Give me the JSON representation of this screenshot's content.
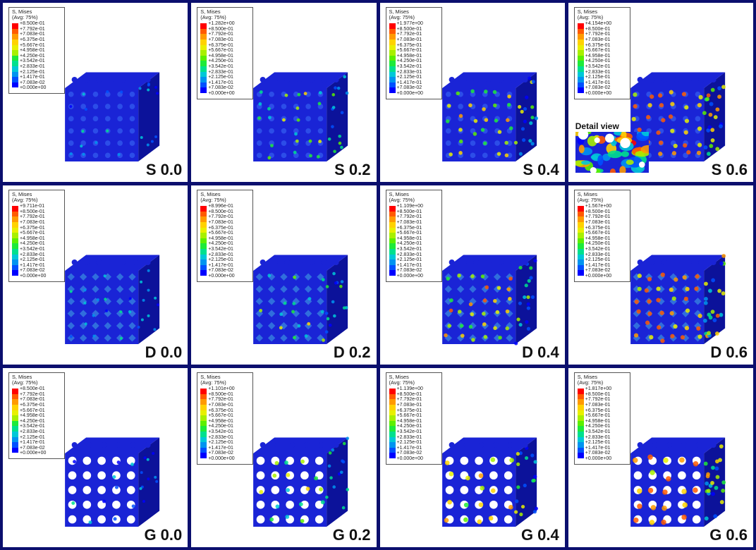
{
  "legend_header": [
    "S, Mises",
    "(Avg: 75%)"
  ],
  "colors": {
    "frame": "#0b0f6e",
    "cube_base": "#1a24d6",
    "cube_dark": "#0c129a",
    "colormap": [
      "#ff0000",
      "#ff5a00",
      "#ff9a00",
      "#ffd200",
      "#e8f000",
      "#a8f000",
      "#5cef00",
      "#1eea3a",
      "#00e08e",
      "#00c8d8",
      "#0094f0",
      "#0050ff",
      "#0000ff"
    ]
  },
  "panels": [
    {
      "label": "S 0.0",
      "topology": "S",
      "load": 0.0,
      "legend": [
        "+8.500e-01",
        "+7.792e-01",
        "+7.083e-01",
        "+6.375e-01",
        "+5.667e-01",
        "+4.958e-01",
        "+4.250e-01",
        "+3.542e-01",
        "+2.833e-01",
        "+2.125e-01",
        "+1.417e-01",
        "+7.083e-02",
        "+0.000e+00"
      ]
    },
    {
      "label": "S 0.2",
      "topology": "S",
      "load": 0.2,
      "legend": [
        "+1.282e+00",
        "+8.500e-01",
        "+7.792e-01",
        "+7.083e-01",
        "+6.375e-01",
        "+5.667e-01",
        "+4.958e-01",
        "+4.250e-01",
        "+3.542e-01",
        "+2.833e-01",
        "+2.125e-01",
        "+1.417e-01",
        "+7.083e-02",
        "+0.000e+00"
      ]
    },
    {
      "label": "S 0.4",
      "topology": "S",
      "load": 0.4,
      "legend": [
        "+1.977e+00",
        "+8.500e-01",
        "+7.792e-01",
        "+7.083e-01",
        "+6.375e-01",
        "+5.667e-01",
        "+4.958e-01",
        "+4.250e-01",
        "+3.542e-01",
        "+2.833e-01",
        "+2.125e-01",
        "+1.417e-01",
        "+7.083e-02",
        "+0.000e+00"
      ]
    },
    {
      "label": "S 0.6",
      "topology": "S",
      "load": 0.6,
      "detail_title": "Detail view",
      "legend": [
        "+4.154e+00",
        "+8.500e-01",
        "+7.792e-01",
        "+7.083e-01",
        "+6.375e-01",
        "+5.667e-01",
        "+4.958e-01",
        "+4.250e-01",
        "+3.542e-01",
        "+2.833e-01",
        "+2.125e-01",
        "+1.417e-01",
        "+7.083e-02",
        "+0.000e+00"
      ]
    },
    {
      "label": "D 0.0",
      "topology": "D",
      "load": 0.0,
      "legend": [
        "+9.711e-01",
        "+8.500e-01",
        "+7.792e-01",
        "+7.083e-01",
        "+6.375e-01",
        "+5.667e-01",
        "+4.958e-01",
        "+4.250e-01",
        "+3.542e-01",
        "+2.833e-01",
        "+2.125e-01",
        "+1.417e-01",
        "+7.083e-02",
        "+0.000e+00"
      ]
    },
    {
      "label": "D 0.2",
      "topology": "D",
      "load": 0.2,
      "legend": [
        "+8.996e-01",
        "+8.500e-01",
        "+7.792e-01",
        "+7.083e-01",
        "+6.375e-01",
        "+5.667e-01",
        "+4.958e-01",
        "+4.250e-01",
        "+3.542e-01",
        "+2.833e-01",
        "+2.125e-01",
        "+1.417e-01",
        "+7.083e-02",
        "+0.000e+00"
      ]
    },
    {
      "label": "D 0.4",
      "topology": "D",
      "load": 0.4,
      "legend": [
        "+1.109e+00",
        "+8.500e-01",
        "+7.792e-01",
        "+7.083e-01",
        "+6.375e-01",
        "+5.667e-01",
        "+4.958e-01",
        "+4.250e-01",
        "+3.542e-01",
        "+2.833e-01",
        "+2.125e-01",
        "+1.417e-01",
        "+7.083e-02",
        "+0.000e+00"
      ]
    },
    {
      "label": "D 0.6",
      "topology": "D",
      "load": 0.6,
      "legend": [
        "+1.567e+00",
        "+8.500e-01",
        "+7.792e-01",
        "+7.083e-01",
        "+6.375e-01",
        "+5.667e-01",
        "+4.958e-01",
        "+4.250e-01",
        "+3.542e-01",
        "+2.833e-01",
        "+2.125e-01",
        "+1.417e-01",
        "+7.083e-02",
        "+0.000e+00"
      ]
    },
    {
      "label": "G 0.0",
      "topology": "G",
      "load": 0.0,
      "legend": [
        "+8.500e-01",
        "+7.792e-01",
        "+7.083e-01",
        "+6.375e-01",
        "+5.667e-01",
        "+4.958e-01",
        "+4.250e-01",
        "+3.542e-01",
        "+2.833e-01",
        "+2.125e-01",
        "+1.417e-01",
        "+7.083e-02",
        "+0.000e+00"
      ]
    },
    {
      "label": "G 0.2",
      "topology": "G",
      "load": 0.2,
      "legend": [
        "+1.101e+00",
        "+8.500e-01",
        "+7.792e-01",
        "+7.083e-01",
        "+6.375e-01",
        "+5.667e-01",
        "+4.958e-01",
        "+4.250e-01",
        "+3.542e-01",
        "+2.833e-01",
        "+2.125e-01",
        "+1.417e-01",
        "+7.083e-02",
        "+0.000e+00"
      ]
    },
    {
      "label": "G 0.4",
      "topology": "G",
      "load": 0.4,
      "legend": [
        "+1.139e+00",
        "+8.500e-01",
        "+7.792e-01",
        "+7.083e-01",
        "+6.375e-01",
        "+5.667e-01",
        "+4.958e-01",
        "+4.250e-01",
        "+3.542e-01",
        "+2.833e-01",
        "+2.125e-01",
        "+1.417e-01",
        "+7.083e-02",
        "+0.000e+00"
      ]
    },
    {
      "label": "G 0.6",
      "topology": "G",
      "load": 0.6,
      "legend": [
        "+1.817e+00",
        "+8.500e-01",
        "+7.792e-01",
        "+7.083e-01",
        "+6.375e-01",
        "+5.667e-01",
        "+4.958e-01",
        "+4.250e-01",
        "+3.542e-01",
        "+2.833e-01",
        "+2.125e-01",
        "+1.417e-01",
        "+7.083e-02",
        "+0.000e+00"
      ]
    }
  ]
}
